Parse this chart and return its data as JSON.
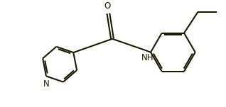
{
  "background_color": "#ffffff",
  "line_color": "#1a1a00",
  "text_color": "#1a1a00",
  "label_N": "N",
  "label_NH": "NH",
  "label_O": "O",
  "figsize": [
    3.18,
    1.51
  ],
  "dpi": 100,
  "linewidth": 1.5
}
